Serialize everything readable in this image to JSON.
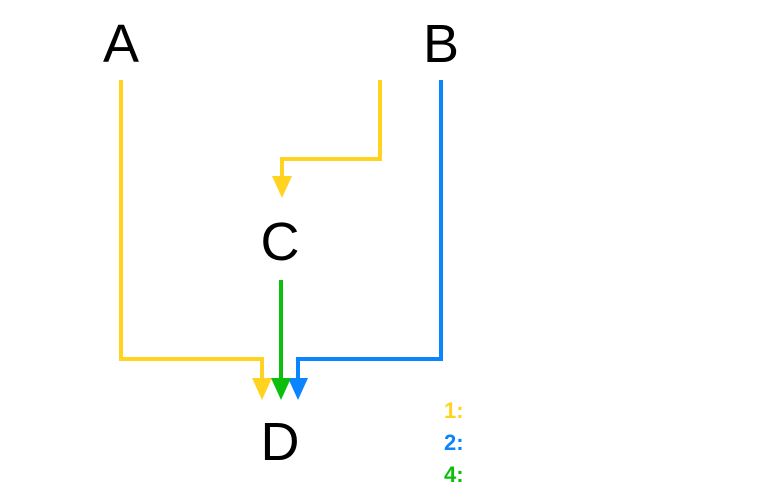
{
  "nodes": {
    "a": "A",
    "b": "B",
    "c": "C",
    "d": "D"
  },
  "colors": {
    "yellow": "#FFD320",
    "blue": "#0A84FF",
    "green": "#0DBF0D"
  },
  "legend": [
    {
      "label": "1:",
      "color": "#FFD320"
    },
    {
      "label": "2:",
      "color": "#0A84FF"
    },
    {
      "label": "4:",
      "color": "#0DBF0D"
    }
  ]
}
